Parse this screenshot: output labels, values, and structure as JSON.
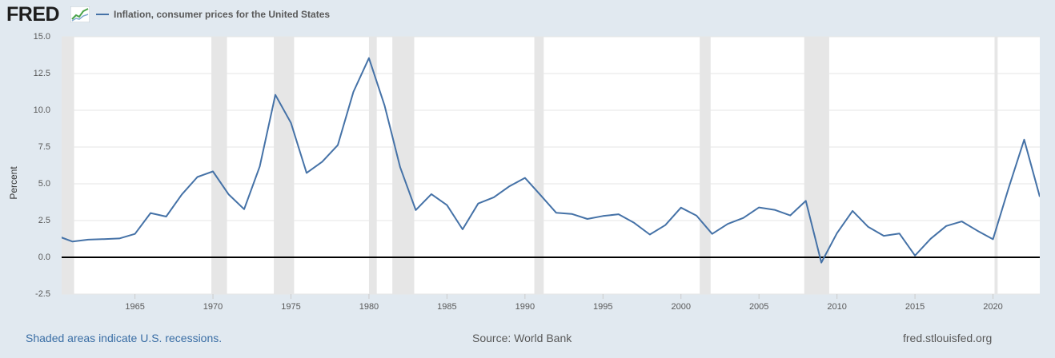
{
  "header": {
    "logo_text": "FRED",
    "series_label": "Inflation, consumer prices for the United States"
  },
  "footer": {
    "recession_note": "Shaded areas indicate U.S. recessions.",
    "source": "Source: World Bank",
    "site": "fred.stlouisfed.org"
  },
  "colors": {
    "series": "#4572a7",
    "recession": "#e6e6e6",
    "background": "#e1e9f0",
    "zero_line": "#000000"
  },
  "chart_data": {
    "type": "line",
    "ylabel": "Percent",
    "xlim": [
      1960.3,
      2023
    ],
    "ylim": [
      -2.5,
      15.0
    ],
    "yticks": [
      15.0,
      12.5,
      10.0,
      7.5,
      5.0,
      2.5,
      0.0,
      -2.5
    ],
    "ytick_labels": [
      "15.0",
      "12.5",
      "10.0",
      "7.5",
      "5.0",
      "2.5",
      "0.0",
      "-2.5"
    ],
    "xticks": [
      1965,
      1970,
      1975,
      1980,
      1985,
      1990,
      1995,
      2000,
      2005,
      2010,
      2015,
      2020
    ],
    "xtick_labels": [
      "1965",
      "1970",
      "1975",
      "1980",
      "1985",
      "1990",
      "1995",
      "2000",
      "2005",
      "2010",
      "2015",
      "2020"
    ],
    "grid": true,
    "series": [
      {
        "name": "Inflation, consumer prices for the United States",
        "x": [
          1960,
          1961,
          1962,
          1963,
          1964,
          1965,
          1966,
          1967,
          1968,
          1969,
          1970,
          1971,
          1972,
          1973,
          1974,
          1975,
          1976,
          1977,
          1978,
          1979,
          1980,
          1981,
          1982,
          1983,
          1984,
          1985,
          1986,
          1987,
          1988,
          1989,
          1990,
          1991,
          1992,
          1993,
          1994,
          1995,
          1996,
          1997,
          1998,
          1999,
          2000,
          2001,
          2002,
          2003,
          2004,
          2005,
          2006,
          2007,
          2008,
          2009,
          2010,
          2011,
          2012,
          2013,
          2014,
          2015,
          2016,
          2017,
          2018,
          2019,
          2020,
          2021,
          2022,
          2023
        ],
        "values": [
          1.46,
          1.07,
          1.2,
          1.24,
          1.28,
          1.59,
          3.01,
          2.77,
          4.27,
          5.46,
          5.84,
          4.29,
          3.27,
          6.18,
          11.05,
          9.14,
          5.74,
          6.5,
          7.63,
          11.25,
          13.55,
          10.33,
          6.13,
          3.21,
          4.3,
          3.55,
          1.9,
          3.66,
          4.08,
          4.83,
          5.4,
          4.23,
          3.03,
          2.95,
          2.61,
          2.81,
          2.93,
          2.34,
          1.55,
          2.19,
          3.38,
          2.83,
          1.59,
          2.27,
          2.68,
          3.39,
          3.23,
          2.85,
          3.84,
          -0.36,
          1.64,
          3.16,
          2.07,
          1.46,
          1.62,
          0.12,
          1.26,
          2.13,
          2.44,
          1.81,
          1.23,
          4.7,
          8.0,
          4.12
        ]
      }
    ],
    "recessions": [
      [
        1960.3,
        1961.1
      ],
      [
        1969.9,
        1970.9
      ],
      [
        1973.9,
        1975.2
      ],
      [
        1980.0,
        1980.5
      ],
      [
        1981.5,
        1982.9
      ],
      [
        1990.6,
        1991.2
      ],
      [
        2001.2,
        2001.9
      ],
      [
        2007.9,
        2009.5
      ],
      [
        2020.1,
        2020.3
      ]
    ]
  }
}
